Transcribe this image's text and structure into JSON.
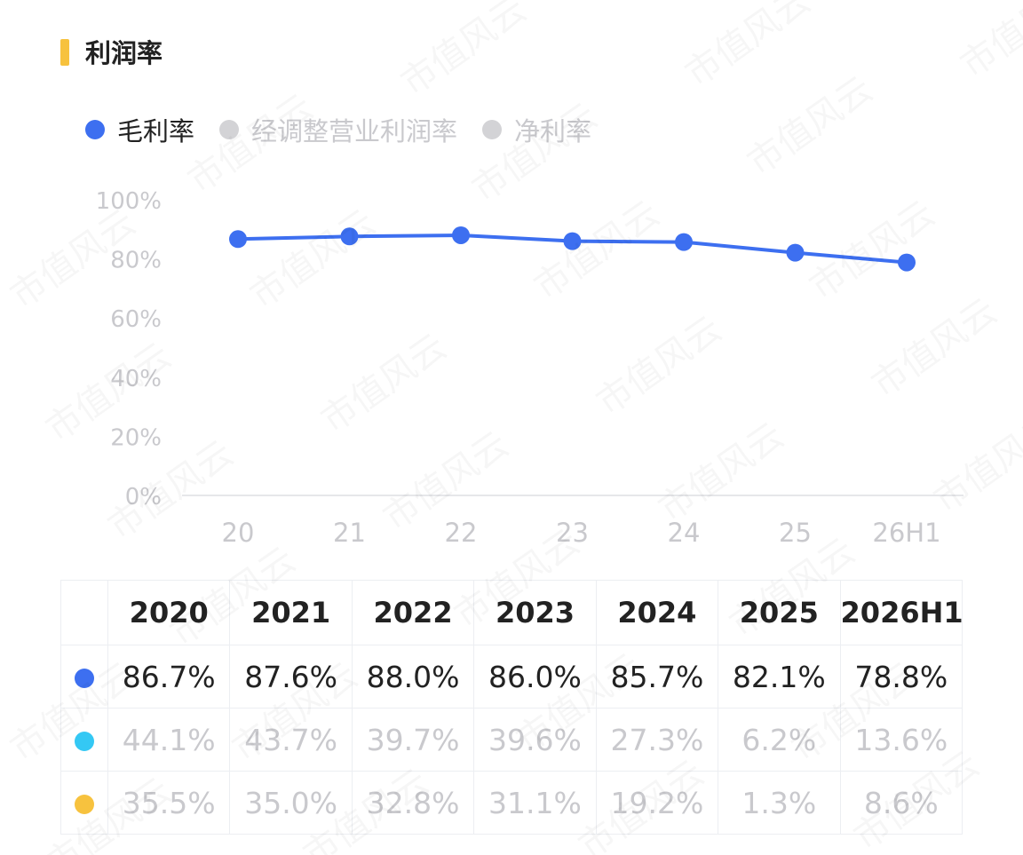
{
  "header": {
    "title": "利润率",
    "accent_color": "#f7c23e"
  },
  "legend": [
    {
      "label": "毛利率",
      "color": "#3d6ff0",
      "active": true
    },
    {
      "label": "经调整营业利润率",
      "color": "#d3d3d6",
      "active": false
    },
    {
      "label": "净利率",
      "color": "#d3d3d6",
      "active": false
    }
  ],
  "watermark": "市值风云",
  "chart_data": {
    "type": "line",
    "x": [
      "20",
      "21",
      "22",
      "23",
      "24",
      "25",
      "26H1"
    ],
    "y_ticks": [
      "100%",
      "80%",
      "60%",
      "40%",
      "20%",
      "0%"
    ],
    "ylim": [
      0,
      100
    ],
    "grid": false,
    "series": [
      {
        "name": "毛利率",
        "color": "#3d6ff0",
        "values": [
          86.7,
          87.6,
          88.0,
          86.0,
          85.7,
          82.1,
          78.8
        ],
        "visible": true
      }
    ]
  },
  "table": {
    "columns": [
      "2020",
      "2021",
      "2022",
      "2023",
      "2024",
      "2025",
      "2026H1"
    ],
    "rows": [
      {
        "marker_color": "#3d6ff0",
        "muted": false,
        "values": [
          "86.7%",
          "87.6%",
          "88.0%",
          "86.0%",
          "85.7%",
          "82.1%",
          "78.8%"
        ]
      },
      {
        "marker_color": "#34c8f4",
        "muted": true,
        "values": [
          "44.1%",
          "43.7%",
          "39.7%",
          "39.6%",
          "27.3%",
          "6.2%",
          "13.6%"
        ]
      },
      {
        "marker_color": "#f7c23e",
        "muted": true,
        "values": [
          "35.5%",
          "35.0%",
          "32.8%",
          "31.1%",
          "19.2%",
          "1.3%",
          "8.6%"
        ]
      }
    ]
  }
}
